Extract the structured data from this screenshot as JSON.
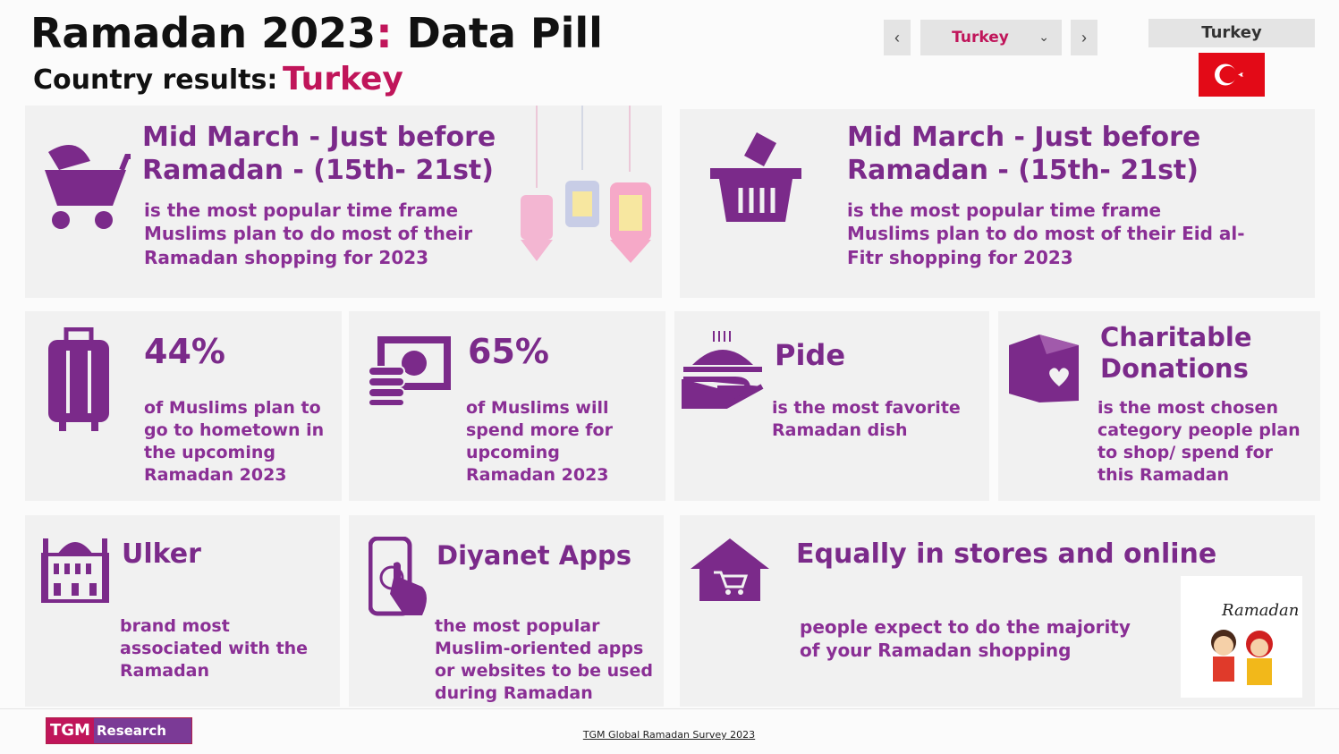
{
  "header": {
    "title": "Ramadan 2023",
    "title_separator": ":",
    "title_suffix": "Data Pill",
    "country_label": "Country results:",
    "country": "Turkey"
  },
  "controls": {
    "selected_country": "Turkey",
    "flag_label": "Turkey"
  },
  "cards": [
    {
      "headline": "Mid March - Just before Ramadan - (15th- 21st)",
      "description": "is the most popular time frame Muslims plan to do most of their Ramadan shopping for 2023"
    },
    {
      "headline": "Mid March - Just before Ramadan - (15th- 21st)",
      "description": "is the most popular time frame Muslims plan to do most of their Eid al-Fitr shopping for 2023"
    },
    {
      "headline": "44%",
      "description": "of Muslims plan to go to hometown in the upcoming Ramadan 2023"
    },
    {
      "headline": "65%",
      "description": "of Muslims will spend more for upcoming Ramadan 2023"
    },
    {
      "headline": "Pide",
      "description": "is the most favorite Ramadan dish"
    },
    {
      "headline": "Charitable Donations",
      "description": "is the most chosen category people plan to shop/ spend for this Ramadan"
    },
    {
      "headline": "Ulker",
      "description": "brand most associated with the Ramadan"
    },
    {
      "headline": "Diyanet Apps",
      "description": "the most popular Muslim-oriented apps or websites to be used during Ramadan"
    },
    {
      "headline": "Equally in stores and online",
      "description": "people expect to do the majority of your Ramadan shopping"
    }
  ],
  "image": {
    "text": "Ramadan"
  },
  "footer": {
    "logo_brand": "TGM",
    "logo_suffix": "Research",
    "source": "TGM Global Ramadan Survey 2023"
  }
}
